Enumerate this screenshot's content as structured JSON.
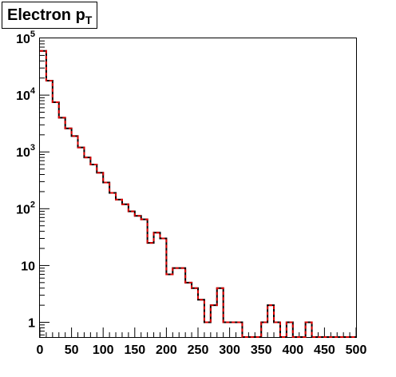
{
  "chart_data": {
    "type": "histogram",
    "title": "Electron p",
    "title_subscript": "T",
    "xlabel": "",
    "ylabel": "",
    "log_y": true,
    "xlim": [
      0,
      500
    ],
    "ylim": [
      0.55,
      100000
    ],
    "grid": false,
    "bin_width": 10,
    "x_ticks": [
      0,
      50,
      100,
      150,
      200,
      250,
      300,
      350,
      400,
      450,
      500
    ],
    "x_tick_labels": [
      "0",
      "50",
      "100",
      "150",
      "200",
      "250",
      "300",
      "350",
      "400",
      "450",
      "500"
    ],
    "y_ticks": [
      {
        "value": 1,
        "base": "1",
        "exp": ""
      },
      {
        "value": 10,
        "base": "10",
        "exp": ""
      },
      {
        "value": 100,
        "base": "10",
        "exp": "2"
      },
      {
        "value": 1000,
        "base": "10",
        "exp": "3"
      },
      {
        "value": 10000,
        "base": "10",
        "exp": "4"
      },
      {
        "value": 100000,
        "base": "10",
        "exp": "5"
      }
    ],
    "series": [
      {
        "style": "solid",
        "color": "#000000",
        "values": [
          60000,
          18000,
          7500,
          4000,
          2600,
          1900,
          1200,
          800,
          600,
          430,
          290,
          190,
          145,
          120,
          90,
          75,
          65,
          25,
          38,
          30,
          7,
          9,
          9,
          5,
          4,
          2.5,
          1,
          2,
          4,
          1,
          1,
          1,
          0,
          0,
          0,
          1,
          2,
          1,
          0,
          1,
          0,
          0,
          1,
          0,
          0,
          0,
          0,
          0,
          0,
          0
        ]
      },
      {
        "style": "dashed",
        "color": "#dd0000",
        "values": [
          60000,
          18000,
          7500,
          4000,
          2600,
          1900,
          1200,
          800,
          600,
          430,
          290,
          190,
          145,
          120,
          90,
          75,
          65,
          25,
          38,
          30,
          7,
          9,
          9,
          5,
          4,
          2.5,
          1,
          2,
          4,
          1,
          1,
          1,
          0,
          0,
          0,
          1,
          2,
          1,
          0,
          1,
          0,
          0,
          1,
          0,
          0,
          0,
          0,
          0,
          0,
          0
        ]
      }
    ]
  }
}
